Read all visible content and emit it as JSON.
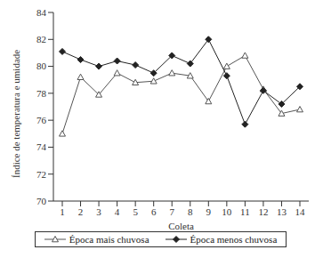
{
  "chart_data": {
    "type": "line",
    "x_label": "Coleta",
    "y_label": "Índice de temperatura e umidade",
    "categories": [
      "1",
      "2",
      "3",
      "4",
      "5",
      "6",
      "7",
      "8",
      "9",
      "10",
      "11",
      "12",
      "13",
      "14"
    ],
    "series": [
      {
        "name": "Época mais chuvosa",
        "color": "#555555",
        "marker": "triangle",
        "values": [
          75.0,
          79.2,
          77.9,
          79.5,
          78.8,
          78.9,
          79.5,
          79.3,
          77.4,
          80.0,
          80.8,
          78.3,
          76.5,
          76.8
        ]
      },
      {
        "name": "Época menos chuvosa",
        "color": "#222222",
        "marker": "diamond",
        "values": [
          81.1,
          80.5,
          80.0,
          80.4,
          80.1,
          79.5,
          80.8,
          80.2,
          82.0,
          79.3,
          75.7,
          78.2,
          77.2,
          78.5
        ]
      }
    ],
    "ylim": [
      70,
      84
    ],
    "yticks": [
      70,
      72,
      74,
      76,
      78,
      80,
      82,
      84
    ],
    "grid": false,
    "legend": "bottom"
  }
}
